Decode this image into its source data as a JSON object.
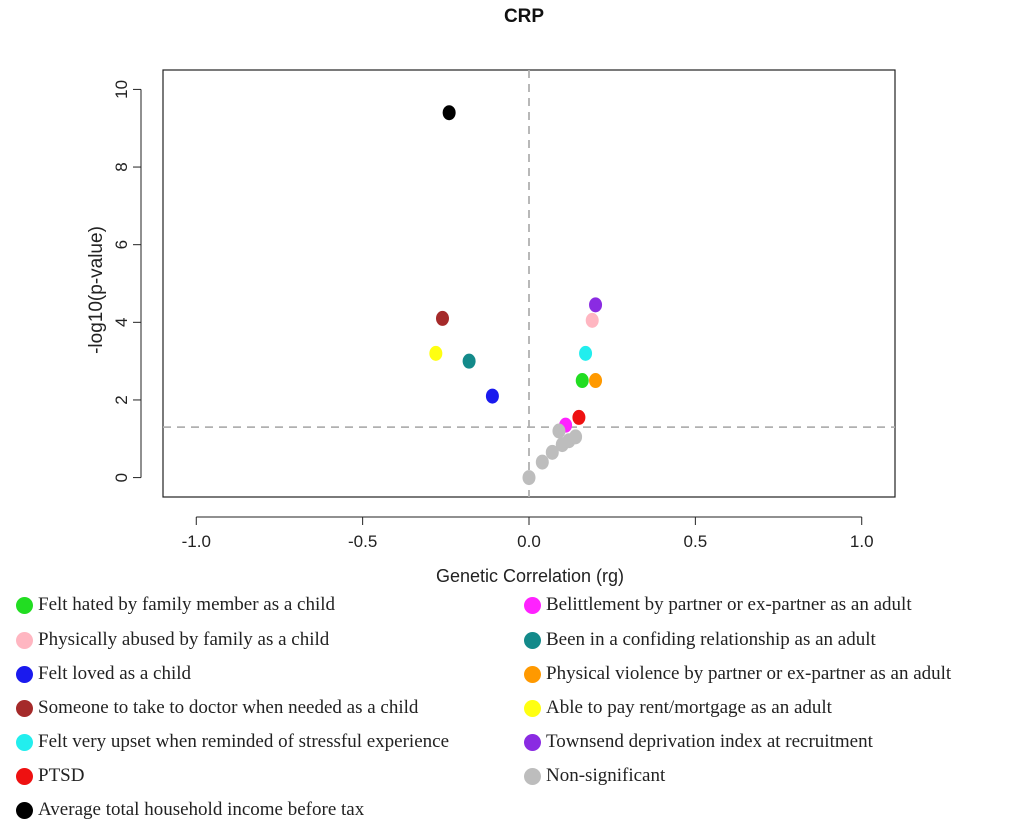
{
  "chart_data": {
    "type": "scatter",
    "title": "CRP",
    "xlabel": "Genetic Correlation (rg)",
    "ylabel": "-log10(p-value)",
    "xlim": [
      -1.1,
      1.1
    ],
    "ylim": [
      -0.5,
      10.5
    ],
    "x_ticks": [
      "-1.0",
      "-0.5",
      "0.0",
      "0.5",
      "1.0"
    ],
    "y_ticks": [
      "0",
      "2",
      "4",
      "6",
      "8",
      "10"
    ],
    "reference_lines": {
      "vertical_x": 0.0,
      "horizontal_y": 1.3
    },
    "grid": false,
    "legend_position": "bottom",
    "series": [
      {
        "name": "Felt hated by family member as a child",
        "color": "#22dd22",
        "points": [
          [
            0.16,
            2.5
          ]
        ]
      },
      {
        "name": "Physically abused by family as a child",
        "color": "#ffb6c1",
        "points": [
          [
            0.19,
            4.05
          ]
        ]
      },
      {
        "name": "Felt loved as a child",
        "color": "#1a1aee",
        "points": [
          [
            -0.11,
            2.1
          ]
        ]
      },
      {
        "name": "Someone to take to doctor when needed as a child",
        "color": "#a52a2a",
        "points": [
          [
            -0.26,
            4.1
          ]
        ]
      },
      {
        "name": "Felt very upset when reminded of stressful experience",
        "color": "#22eeee",
        "points": [
          [
            0.17,
            3.2
          ]
        ]
      },
      {
        "name": "PTSD",
        "color": "#ee1111",
        "points": [
          [
            0.15,
            1.55
          ]
        ]
      },
      {
        "name": "Average total household income before tax",
        "color": "#000000",
        "points": [
          [
            -0.24,
            9.4
          ]
        ]
      },
      {
        "name": "Belittlement by partner or ex-partner as an adult",
        "color": "#ff22ff",
        "points": [
          [
            0.11,
            1.35
          ]
        ]
      },
      {
        "name": "Been in a confiding relationship as an adult",
        "color": "#138a8a",
        "points": [
          [
            -0.18,
            3.0
          ]
        ]
      },
      {
        "name": "Physical violence by partner or ex-partner as an adult",
        "color": "#ff9900",
        "points": [
          [
            0.2,
            2.5
          ]
        ]
      },
      {
        "name": "Able to pay rent/mortgage  as an adult",
        "color": "#ffff11",
        "points": [
          [
            -0.28,
            3.2
          ]
        ]
      },
      {
        "name": "Townsend deprivation index at recruitment",
        "color": "#8a2be2",
        "points": [
          [
            0.2,
            4.45
          ]
        ]
      },
      {
        "name": "Non-significant",
        "color": "#bdbdbd",
        "points": [
          [
            0.0,
            0.0
          ],
          [
            0.04,
            0.4
          ],
          [
            0.07,
            0.65
          ],
          [
            0.1,
            0.85
          ],
          [
            0.12,
            0.95
          ],
          [
            0.14,
            1.05
          ],
          [
            0.09,
            1.2
          ]
        ]
      }
    ]
  }
}
